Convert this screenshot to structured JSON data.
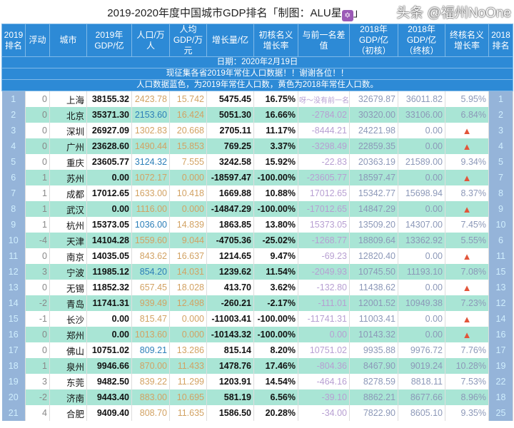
{
  "title": "2019-2020年度中国城市GDP排名「制图：ALU星",
  "title_end": "」",
  "title_badge": "✡",
  "headers": [
    "2019排名",
    "浮动",
    "城市",
    "2019年GDP/亿",
    "人口/万人",
    "人均GDP/万元",
    "增长量/亿",
    "初核名义增长率",
    "与前一名差值",
    "2018年GDP/亿（初核）",
    "2018年GDP/亿（终核）",
    "终核名义增长率",
    "2018排名"
  ],
  "info": [
    "日期：2020年2月19日",
    "现征集各省2019年常住人口数据！！谢谢各位！！",
    "人口数据蓝色，为2019年常住人口数，黄色为2018年常住人口数。"
  ],
  "watermark": "头条 @福州NoOne",
  "colors": {
    "header": "#2d8ad6",
    "row_alt": "#a9e5d5",
    "pop_2019": "#2c7fb8",
    "pop_2018": "#d2a263",
    "warning": "#e2553a"
  },
  "rows": [
    [
      "1",
      "0",
      "上海",
      "38155.32",
      "2423.78",
      "15.742",
      "5475.45",
      "16.75%",
      "呀～没有前一名",
      "32679.87",
      "36011.82",
      "5.95%",
      "1",
      "y"
    ],
    [
      "2",
      "0",
      "北京",
      "35371.30",
      "2153.60",
      "16.424",
      "5051.30",
      "16.66%",
      "-2784.02",
      "30320.00",
      "33106.00",
      "6.84%",
      "2",
      "b"
    ],
    [
      "3",
      "0",
      "深圳",
      "26927.09",
      "1302.83",
      "20.668",
      "2705.11",
      "11.17%",
      "-8444.21",
      "24221.98",
      "0.00",
      "warning-icon",
      "3",
      "y"
    ],
    [
      "4",
      "0",
      "广州",
      "23628.60",
      "1490.44",
      "15.853",
      "769.25",
      "3.37%",
      "-3298.49",
      "22859.35",
      "0.00",
      "warning-icon",
      "4",
      "y"
    ],
    [
      "5",
      "0",
      "重庆",
      "23605.77",
      "3124.32",
      "7.555",
      "3242.58",
      "15.92%",
      "-22.83",
      "20363.19",
      "21589.00",
      "9.34%",
      "5",
      "b"
    ],
    [
      "6",
      "1",
      "苏州",
      "0.00",
      "1072.17",
      "0.000",
      "-18597.47",
      "-100.00%",
      "-23605.77",
      "18597.47",
      "0.00",
      "warning-icon",
      "7",
      "y"
    ],
    [
      "7",
      "1",
      "成都",
      "17012.65",
      "1633.00",
      "10.418",
      "1669.88",
      "10.88%",
      "17012.65",
      "15342.77",
      "15698.94",
      "8.37%",
      "8",
      "y"
    ],
    [
      "8",
      "1",
      "武汉",
      "0.00",
      "1116.00",
      "0.000",
      "-14847.29",
      "-100.00%",
      "-17012.65",
      "14847.29",
      "0.00",
      "warning-icon",
      "9",
      "y"
    ],
    [
      "9",
      "1",
      "杭州",
      "15373.05",
      "1036.00",
      "14.839",
      "1863.85",
      "13.80%",
      "15373.05",
      "13509.20",
      "14307.00",
      "7.45%",
      "10",
      "b"
    ],
    [
      "10",
      "-4",
      "天津",
      "14104.28",
      "1559.60",
      "9.044",
      "-4705.36",
      "-25.02%",
      "-1268.77",
      "18809.64",
      "13362.92",
      "5.55%",
      "6",
      "y"
    ],
    [
      "11",
      "0",
      "南京",
      "14035.05",
      "843.62",
      "16.637",
      "1214.65",
      "9.47%",
      "-69.23",
      "12820.40",
      "0.00",
      "warning-icon",
      "11",
      "y"
    ],
    [
      "12",
      "3",
      "宁波",
      "11985.12",
      "854.20",
      "14.031",
      "1239.62",
      "11.54%",
      "-2049.93",
      "10745.50",
      "11193.10",
      "7.08%",
      "15",
      "b"
    ],
    [
      "13",
      "0",
      "无锡",
      "11852.32",
      "657.45",
      "18.028",
      "413.70",
      "3.62%",
      "-132.80",
      "11438.62",
      "0.00",
      "warning-icon",
      "13",
      "y"
    ],
    [
      "14",
      "-2",
      "青岛",
      "11741.31",
      "939.49",
      "12.498",
      "-260.21",
      "-2.17%",
      "-111.01",
      "12001.52",
      "10949.38",
      "7.23%",
      "12",
      "y"
    ],
    [
      "15",
      "-1",
      "长沙",
      "0.00",
      "815.47",
      "0.000",
      "-11003.41",
      "-100.00%",
      "-11741.31",
      "11003.41",
      "0.00",
      "warning-icon",
      "14",
      "y"
    ],
    [
      "16",
      "0",
      "郑州",
      "0.00",
      "1013.60",
      "0.000",
      "-10143.32",
      "-100.00%",
      "0.00",
      "10143.32",
      "0.00",
      "warning-icon",
      "16",
      "y"
    ],
    [
      "17",
      "0",
      "佛山",
      "10751.02",
      "809.21",
      "13.286",
      "815.14",
      "8.20%",
      "10751.02",
      "9935.88",
      "9976.72",
      "7.76%",
      "17",
      "b"
    ],
    [
      "18",
      "1",
      "泉州",
      "9946.66",
      "870.00",
      "11.433",
      "1478.76",
      "17.46%",
      "-804.36",
      "8467.90",
      "9019.24",
      "10.28%",
      "19",
      "y"
    ],
    [
      "19",
      "3",
      "东莞",
      "9482.50",
      "839.22",
      "11.299",
      "1203.91",
      "14.54%",
      "-464.16",
      "8278.59",
      "8818.11",
      "7.53%",
      "22",
      "y"
    ],
    [
      "20",
      "-2",
      "济南",
      "9443.40",
      "883.00",
      "10.695",
      "581.19",
      "6.56%",
      "-39.10",
      "8862.21",
      "8677.66",
      "8.96%",
      "18",
      "y"
    ],
    [
      "21",
      "4",
      "合肥",
      "9409.40",
      "808.70",
      "11.635",
      "1586.50",
      "20.28%",
      "-34.00",
      "7822.90",
      "8605.10",
      "9.35%",
      "25",
      "y"
    ]
  ]
}
